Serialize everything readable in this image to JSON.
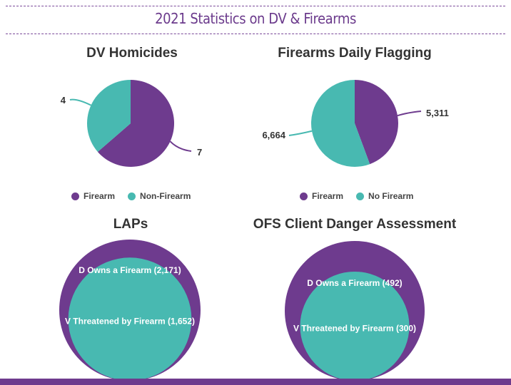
{
  "title": "2021 Statistics on DV & Firearms",
  "colors": {
    "purple": "#6e3b8e",
    "teal": "#48b9b1",
    "bar": "#6e3b8e"
  },
  "chart_data": [
    {
      "type": "pie",
      "title": "DV Homicides",
      "series": [
        {
          "name": "Firearm",
          "value": 7,
          "label": "7",
          "color": "#6e3b8e"
        },
        {
          "name": "Non-Firearm",
          "value": 4,
          "label": "4",
          "color": "#48b9b1"
        }
      ],
      "legend": "bottom"
    },
    {
      "type": "pie",
      "title": "Firearms Daily Flagging",
      "series": [
        {
          "name": "Firearm",
          "value": 5311,
          "label": "5,311",
          "color": "#6e3b8e"
        },
        {
          "name": "No Firearm",
          "value": 6664,
          "label": "6,664",
          "color": "#48b9b1"
        }
      ],
      "legend": "bottom"
    },
    {
      "type": "area",
      "title": "LAPs",
      "series": [
        {
          "name": "D Owns a Firearm (2,171)",
          "value": 2171,
          "color": "#6e3b8e"
        },
        {
          "name": "V Threatened by Firearm (1,652)",
          "value": 1652,
          "color": "#48b9b1"
        }
      ]
    },
    {
      "type": "area",
      "title": "OFS Client Danger Assessment",
      "series": [
        {
          "name": "D Owns a Firearm (492)",
          "value": 492,
          "color": "#6e3b8e"
        },
        {
          "name": "V Threatened by Firearm (300)",
          "value": 300,
          "color": "#48b9b1"
        }
      ]
    }
  ]
}
